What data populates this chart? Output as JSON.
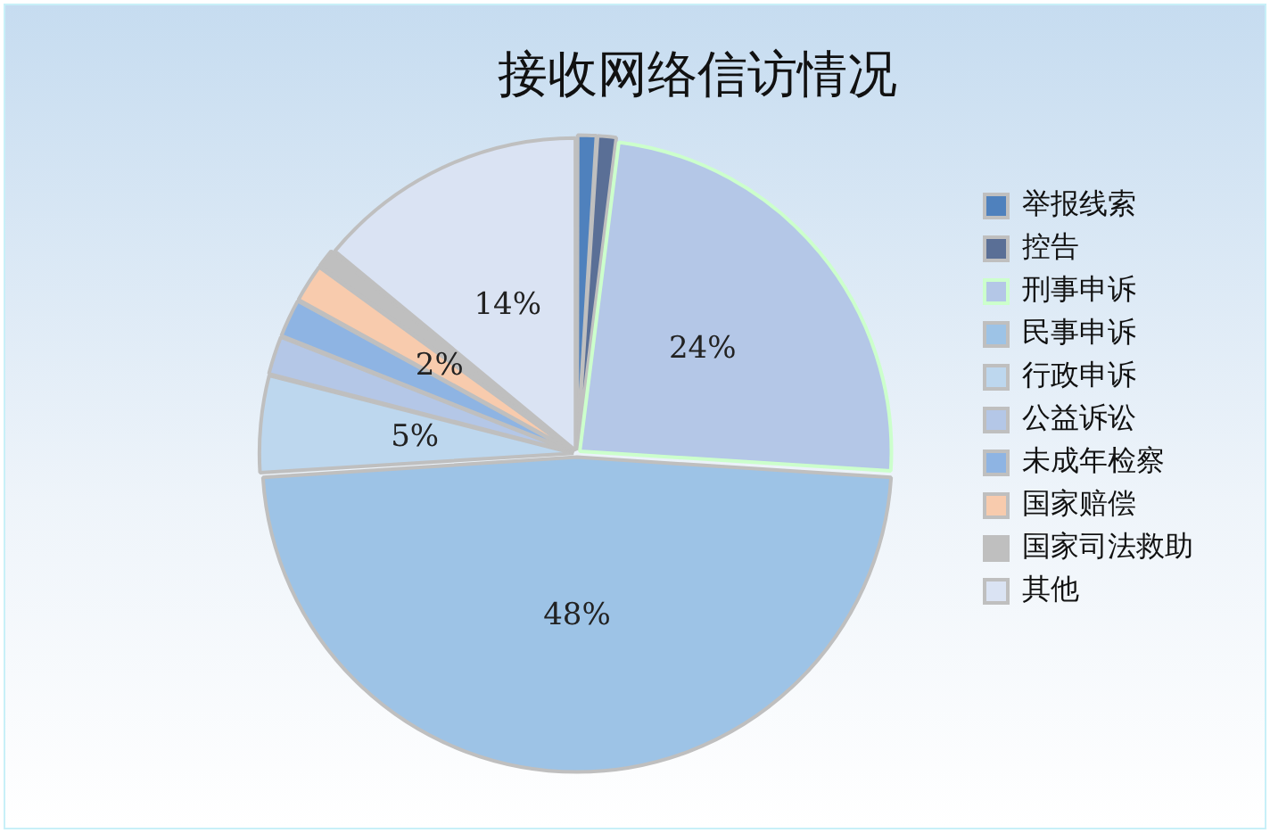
{
  "chart_data": {
    "type": "pie",
    "title": "接收网络信访情况",
    "categories": [
      "举报线索",
      "控告",
      "刑事申诉",
      "民事申诉",
      "行政申诉",
      "公益诉讼",
      "未成年检察",
      "国家赔偿",
      "国家司法救助",
      "其他"
    ],
    "values": [
      1,
      1,
      24,
      48,
      5,
      2,
      2,
      2,
      1,
      14
    ],
    "value_labels": [
      null,
      null,
      "24%",
      "48%",
      "5%",
      null,
      null,
      "2%",
      null,
      "14%"
    ],
    "colors": [
      "#4f81bd",
      "#5a6f96",
      "#b4c7e7",
      "#9dc3e6",
      "#bdd7ee",
      "#b4c7e7",
      "#8eb4e3",
      "#f8cbad",
      "#bfbfbf",
      "#dae3f3"
    ],
    "legend": "right"
  }
}
